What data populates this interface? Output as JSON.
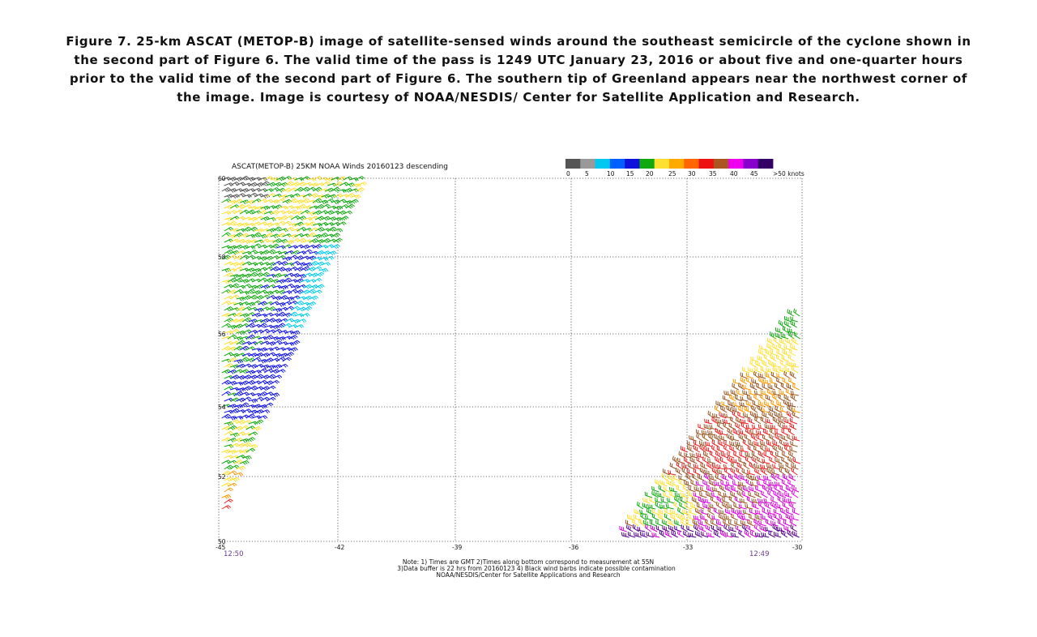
{
  "caption": "Figure 7. 25-km ASCAT (METOP-B) image of satellite-sensed winds around the southeast semicircle of the cyclone shown in the second part of Figure 6. The valid time of the pass is 1249 UTC January 23, 2016 or about five and one-quarter hours prior to the valid time of the second part of Figure 6. The southern tip of Greenland appears near the northwest corner of the image.  Image is courtesy of NOAA/NESDIS/ Center for Satellite Application and Research.",
  "map": {
    "title": "ASCAT(METOP-B) 25KM NOAA Winds 20160123 descending",
    "lat_labels": [
      "60",
      "58",
      "56",
      "54",
      "52",
      "50"
    ],
    "lon_labels": [
      "-45",
      "-42",
      "-39",
      "-36",
      "-33",
      "-30"
    ],
    "time_left": "12:50",
    "time_right": "12:49",
    "colors": {
      "calm": "#555555",
      "cyan": "#00ccee",
      "blue": "#1010ee",
      "green": "#10aa10",
      "yellow": "#ffe030",
      "orange": "#ff9900",
      "red": "#ee2020",
      "brown": "#995522",
      "magenta": "#dd00dd",
      "purple": "#550088"
    }
  },
  "legend": {
    "labels": [
      "0",
      "5",
      "10",
      "15",
      "20",
      "25",
      "30",
      "35",
      "40",
      "45",
      ">50 knots"
    ],
    "colors": [
      "#555555",
      "#999999",
      "#00c8f0",
      "#0060ff",
      "#1010dd",
      "#10aa10",
      "#ffe030",
      "#ffaa00",
      "#ff6600",
      "#ee1111",
      "#aa5522",
      "#ee00ee",
      "#8800cc",
      "#330066"
    ]
  },
  "notes": [
    "Note: 1) Times are GMT 2)Times along bottom correspond to measurement at 55N",
    "3)Data buffer is 22 hrs from 20160123 4) Black wind barbs indicate possible contamination",
    "NOAA/NESDIS/Center for Satellite Applications and Research"
  ]
}
